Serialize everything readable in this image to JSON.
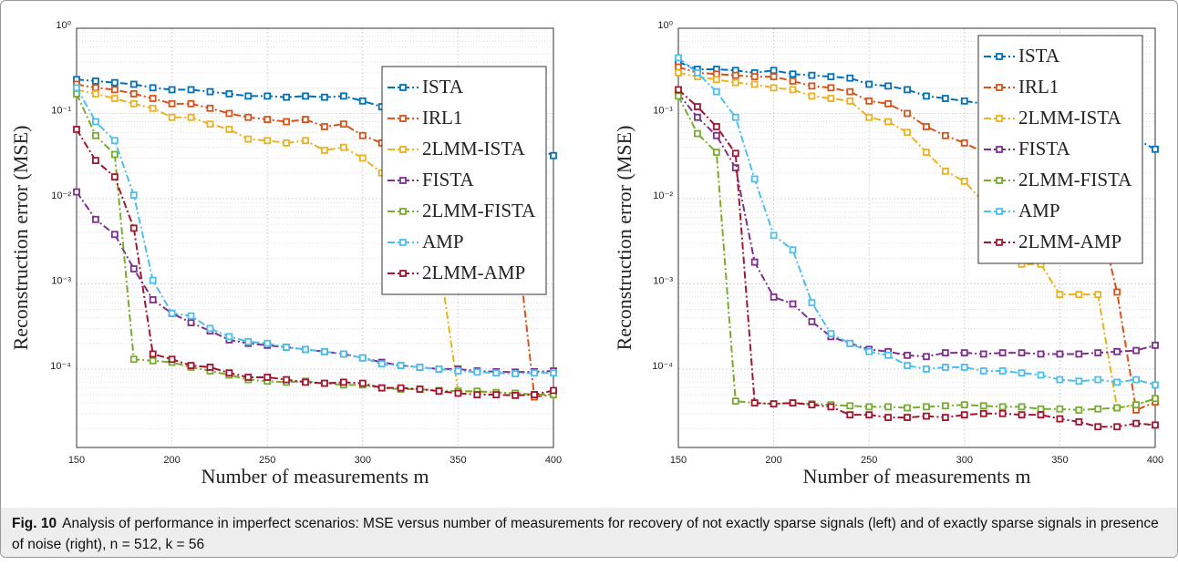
{
  "chart_data": [
    {
      "type": "line",
      "y_scale": "log",
      "grid": true,
      "minor_grid": true,
      "legend": "northeast",
      "xlabel": "Number of measurements m",
      "ylabel": "Reconstruction error (MSE)",
      "x": [
        150,
        160,
        170,
        180,
        190,
        200,
        210,
        220,
        230,
        240,
        250,
        260,
        270,
        280,
        290,
        300,
        310,
        320,
        330,
        340,
        350,
        360,
        370,
        380,
        390,
        400
      ],
      "xlim": [
        150,
        400
      ],
      "xticks": [
        150,
        200,
        250,
        300,
        350,
        400
      ],
      "ylim": [
        1.2e-05,
        1
      ],
      "yticks": [
        {
          "value": 1,
          "label": "10⁰"
        },
        {
          "value": 0.1,
          "label": "10⁻¹"
        },
        {
          "value": 0.01,
          "label": "10⁻²"
        },
        {
          "value": 0.001,
          "label": "10⁻³"
        },
        {
          "value": 0.0001,
          "label": "10⁻⁴"
        }
      ],
      "series": [
        {
          "name": "ISTA",
          "color": "#0072bd",
          "values": [
            0.25,
            0.24,
            0.23,
            0.22,
            0.2,
            0.19,
            0.19,
            0.18,
            0.17,
            0.16,
            0.16,
            0.155,
            0.16,
            0.155,
            0.16,
            0.14,
            0.12,
            0.11,
            0.09,
            0.08,
            0.07,
            0.06,
            0.05,
            0.045,
            0.04,
            0.032
          ]
        },
        {
          "name": "IRL1",
          "color": "#d95319",
          "values": [
            0.22,
            0.2,
            0.19,
            0.17,
            0.15,
            0.13,
            0.13,
            0.115,
            0.1,
            0.09,
            0.085,
            0.08,
            0.085,
            0.07,
            0.075,
            0.055,
            0.045,
            0.04,
            0.035,
            0.03,
            0.025,
            0.02,
            0.015,
            0.005,
            4.7e-05,
            5e-05
          ]
        },
        {
          "name": "2LMM-ISTA",
          "color": "#edb120",
          "values": [
            0.19,
            0.17,
            0.15,
            0.13,
            0.115,
            0.09,
            0.09,
            0.075,
            0.065,
            0.05,
            0.048,
            0.045,
            0.048,
            0.037,
            0.04,
            0.03,
            0.02,
            0.01,
            0.005,
            0.002,
            5.5e-05,
            5.4e-05,
            5.3e-05,
            5.2e-05,
            5e-05,
            5e-05
          ]
        },
        {
          "name": "FISTA",
          "color": "#7e2f8e",
          "values": [
            0.012,
            0.0057,
            0.0038,
            0.0015,
            0.00065,
            0.00045,
            0.00035,
            0.00028,
            0.00022,
            0.0002,
            0.00019,
            0.00018,
            0.00017,
            0.00016,
            0.00015,
            0.000135,
            0.00012,
            0.00011,
            0.000105,
            0.0001,
            0.0001,
            9.5e-05,
            9.3e-05,
            9.2e-05,
            9.3e-05,
            9.5e-05
          ]
        },
        {
          "name": "2LMM-FISTA",
          "color": "#77ac30",
          "values": [
            0.17,
            0.055,
            0.033,
            0.00013,
            0.000125,
            0.00012,
            0.000105,
            9.5e-05,
            8.5e-05,
            7.5e-05,
            7.2e-05,
            7e-05,
            7.2e-05,
            6.8e-05,
            6.5e-05,
            6.5e-05,
            6e-05,
            5.8e-05,
            5.8e-05,
            5.6e-05,
            5.5e-05,
            5.5e-05,
            5.3e-05,
            5.2e-05,
            5e-05,
            5e-05
          ]
        },
        {
          "name": "AMP",
          "color": "#4dbeee",
          "values": [
            0.2,
            0.08,
            0.048,
            0.011,
            0.0011,
            0.00045,
            0.00042,
            0.0003,
            0.00024,
            0.00021,
            0.0002,
            0.00018,
            0.00017,
            0.00016,
            0.00015,
            0.000135,
            0.000115,
            0.00011,
            0.000105,
            0.0001,
            9.5e-05,
            9.2e-05,
            9e-05,
            8.8e-05,
            9e-05,
            9e-05
          ]
        },
        {
          "name": "2LMM-AMP",
          "color": "#a2142f",
          "values": [
            0.065,
            0.028,
            0.018,
            0.0045,
            0.00015,
            0.00013,
            0.00011,
            0.000105,
            9e-05,
            8e-05,
            8e-05,
            7.5e-05,
            7e-05,
            6.8e-05,
            7e-05,
            6.8e-05,
            6e-05,
            6e-05,
            5.8e-05,
            5.5e-05,
            5.2e-05,
            5e-05,
            5e-05,
            4.9e-05,
            5e-05,
            5.6e-05
          ]
        }
      ]
    },
    {
      "type": "line",
      "y_scale": "log",
      "grid": true,
      "minor_grid": true,
      "legend": "northeast",
      "xlabel": "Number of measurements m",
      "ylabel": "Reconstruction error (MSE)",
      "x": [
        150,
        160,
        170,
        180,
        190,
        200,
        210,
        220,
        230,
        240,
        250,
        260,
        270,
        280,
        290,
        300,
        310,
        320,
        330,
        340,
        350,
        360,
        370,
        380,
        390,
        400
      ],
      "xlim": [
        150,
        400
      ],
      "xticks": [
        150,
        200,
        250,
        300,
        350,
        400
      ],
      "ylim": [
        1.2e-05,
        1
      ],
      "yticks": [
        {
          "value": 1,
          "label": "10⁰"
        },
        {
          "value": 0.1,
          "label": "10⁻¹"
        },
        {
          "value": 0.01,
          "label": "10⁻²"
        },
        {
          "value": 0.001,
          "label": "10⁻³"
        },
        {
          "value": 0.0001,
          "label": "10⁻⁴"
        }
      ],
      "series": [
        {
          "name": "ISTA",
          "color": "#0072bd",
          "values": [
            0.4,
            0.33,
            0.33,
            0.32,
            0.3,
            0.32,
            0.29,
            0.28,
            0.27,
            0.26,
            0.22,
            0.21,
            0.19,
            0.16,
            0.15,
            0.14,
            0.13,
            0.12,
            0.11,
            0.1,
            0.09,
            0.08,
            0.07,
            0.06,
            0.05,
            0.038
          ]
        },
        {
          "name": "IRL1",
          "color": "#d95319",
          "values": [
            0.35,
            0.3,
            0.29,
            0.28,
            0.27,
            0.27,
            0.24,
            0.21,
            0.2,
            0.18,
            0.14,
            0.13,
            0.1,
            0.07,
            0.055,
            0.045,
            0.035,
            0.03,
            0.025,
            0.02,
            0.015,
            0.01,
            0.007,
            0.0008,
            3.3e-05,
            4.1e-05
          ]
        },
        {
          "name": "2LMM-ISTA",
          "color": "#edb120",
          "values": [
            0.3,
            0.27,
            0.25,
            0.23,
            0.22,
            0.2,
            0.19,
            0.16,
            0.15,
            0.14,
            0.09,
            0.08,
            0.06,
            0.035,
            0.021,
            0.016,
            0.009,
            0.004,
            0.0017,
            0.0017,
            0.00075,
            0.00075,
            0.00075,
            3.5e-05,
            3.8e-05,
            4.5e-05
          ]
        },
        {
          "name": "FISTA",
          "color": "#7e2f8e",
          "values": [
            0.17,
            0.09,
            0.055,
            0.023,
            0.0018,
            0.0007,
            0.00058,
            0.00036,
            0.00024,
            0.0002,
            0.00017,
            0.00016,
            0.000145,
            0.00014,
            0.000155,
            0.000155,
            0.00015,
            0.000155,
            0.000155,
            0.00015,
            0.00015,
            0.00015,
            0.000155,
            0.00016,
            0.000165,
            0.00019
          ]
        },
        {
          "name": "2LMM-FISTA",
          "color": "#77ac30",
          "values": [
            0.16,
            0.058,
            0.035,
            4.2e-05,
            4e-05,
            3.9e-05,
            4e-05,
            3.9e-05,
            3.8e-05,
            3.7e-05,
            3.6e-05,
            3.6e-05,
            3.5e-05,
            3.6e-05,
            3.7e-05,
            3.8e-05,
            3.7e-05,
            3.6e-05,
            3.6e-05,
            3.4e-05,
            3.4e-05,
            3.3e-05,
            3.4e-05,
            3.5e-05,
            3.8e-05,
            4.5e-05
          ]
        },
        {
          "name": "AMP",
          "color": "#4dbeee",
          "values": [
            0.45,
            0.3,
            0.18,
            0.09,
            0.017,
            0.0037,
            0.0025,
            0.0006,
            0.00026,
            0.0002,
            0.00016,
            0.000145,
            0.00011,
            0.0001,
            0.000105,
            0.000105,
            9.5e-05,
            9.5e-05,
            9e-05,
            8.5e-05,
            7.5e-05,
            7.2e-05,
            7.5e-05,
            7e-05,
            7.5e-05,
            6.5e-05
          ]
        },
        {
          "name": "2LMM-AMP",
          "color": "#a2142f",
          "values": [
            0.19,
            0.12,
            0.07,
            0.034,
            4e-05,
            3.9e-05,
            4e-05,
            3.8e-05,
            3.6e-05,
            2.9e-05,
            2.9e-05,
            2.7e-05,
            2.7e-05,
            2.8e-05,
            2.7e-05,
            2.9e-05,
            3e-05,
            3e-05,
            2.9e-05,
            2.9e-05,
            2.6e-05,
            2.4e-05,
            2.1e-05,
            2.1e-05,
            2.3e-05,
            2.2e-05
          ]
        }
      ]
    }
  ],
  "caption": {
    "label": "Fig. 10",
    "text": "Analysis of performance in imperfect scenarios: MSE versus number of measurements for recovery of not exactly sparse signals (left) and of exactly sparse signals in presence of noise (right), n = 512, k = 56"
  }
}
